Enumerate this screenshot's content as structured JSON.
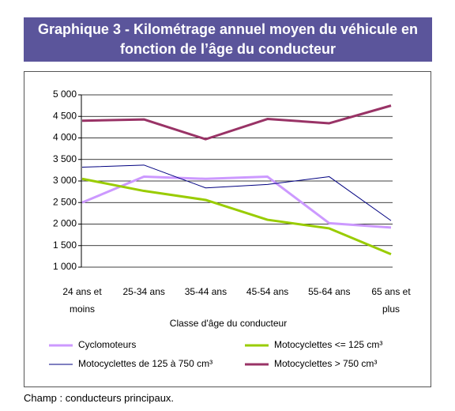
{
  "chart_data": {
    "type": "line",
    "title": "Graphique 3 - Kilométrage annuel moyen du véhicule en fonction de l’âge du conducteur",
    "x_label": "Classe d'âge du conducteur",
    "categories": [
      "24 ans et moins",
      "25-34 ans",
      "35-44 ans",
      "45-54 ans",
      "55-64 ans",
      "65 ans et plus"
    ],
    "series": [
      {
        "name": "Cyclomoteurs",
        "color": "#cc99ff",
        "width": 3,
        "values": [
          2500,
          3100,
          3050,
          3100,
          2020,
          1920
        ]
      },
      {
        "name": "Motocyclettes <= 125 cm³",
        "color": "#99cc00",
        "width": 3,
        "values": [
          3050,
          2770,
          2560,
          2100,
          1900,
          1300
        ]
      },
      {
        "name": "Motocyclettes de 125 à 750 cm³",
        "color": "#000080",
        "width": 1,
        "values": [
          3320,
          3370,
          2840,
          2920,
          3100,
          2080
        ]
      },
      {
        "name": "Motocyclettes > 750 cm³",
        "color": "#993366",
        "width": 3,
        "values": [
          4400,
          4430,
          3970,
          4440,
          4340,
          4750
        ]
      }
    ],
    "ylim": [
      1000,
      5000
    ],
    "yticks": [
      {
        "value": 1000,
        "label": "1 000"
      },
      {
        "value": 1500,
        "label": "1 500"
      },
      {
        "value": 2000,
        "label": "2 000"
      },
      {
        "value": 2500,
        "label": "2 500"
      },
      {
        "value": 3000,
        "label": "3 000"
      },
      {
        "value": 3500,
        "label": "3 500"
      },
      {
        "value": 4000,
        "label": "4 000"
      },
      {
        "value": 4500,
        "label": "4 500"
      },
      {
        "value": 5000,
        "label": "5 000"
      }
    ],
    "grid": true,
    "footnote": "Champ : conducteurs principaux."
  }
}
